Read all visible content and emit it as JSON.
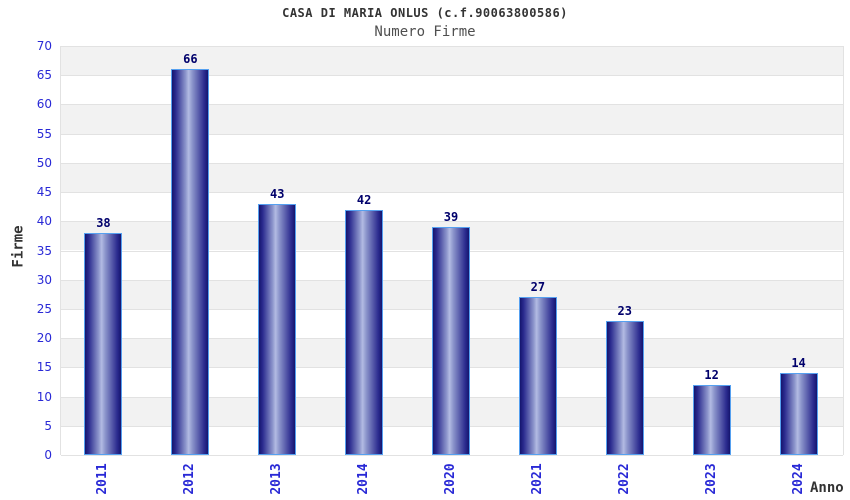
{
  "header": {
    "title": "CASA DI MARIA ONLUS (c.f.90063800586)",
    "subtitle": "Numero Firme"
  },
  "chart_data": {
    "type": "bar",
    "title": "CASA DI MARIA ONLUS (c.f.90063800586)",
    "subtitle": "Numero Firme",
    "categories": [
      "2011",
      "2012",
      "2013",
      "2014",
      "2020",
      "2021",
      "2022",
      "2023",
      "2024"
    ],
    "values": [
      38,
      66,
      43,
      42,
      39,
      27,
      23,
      12,
      14
    ],
    "xlabel": "Anno",
    "ylabel": "Firme",
    "ylim": [
      0,
      70
    ],
    "ytick_step": 5,
    "grid": true,
    "legend": false,
    "background_bands": "alternating shaded stripes every 5 units, shaded band directly above odd multiples of 5"
  },
  "colors": {
    "title_text": "#333333",
    "subtitle_text": "#4f4f4f",
    "tick_label": "#2929d6",
    "value_label": "#00006b",
    "axis_label_text": "#333333",
    "band_shade": "#f2f2f2",
    "band_light": "#ffffff",
    "grid_line": "#e2e2e2",
    "bar_edge_dark": "#15156e",
    "bar_mid": "#2a2a8e",
    "bar_center_light": "#b3bbe3",
    "bar_border": "#55a0f0"
  }
}
